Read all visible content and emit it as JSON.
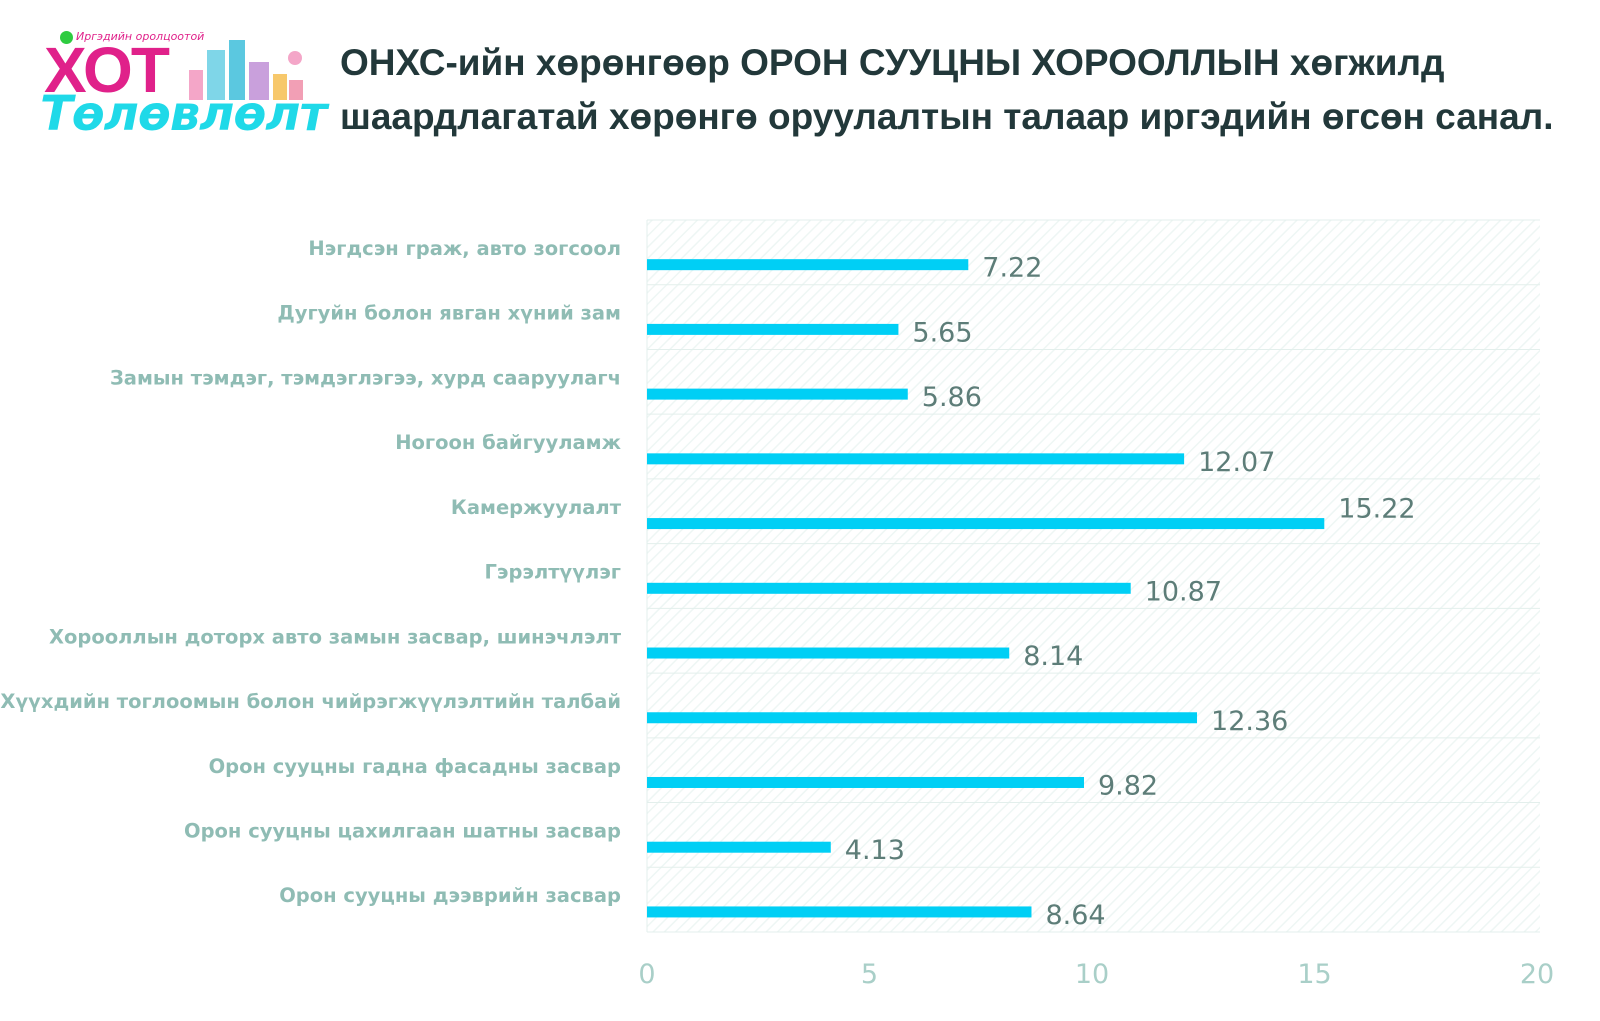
{
  "logo": {
    "tagline": "Иргэдийн оролцоотой",
    "word1": "ХОТ",
    "word2": "Төлөвлөлт"
  },
  "title": {
    "line1": "ОНХС-ийн хөрөнгөөр ОРОН СУУЦНЫ ХОРООЛЛЫН хөгжилд",
    "line2": "шаардлагатай хөрөнгө оруулалтын талаар иргэдийн өгсөн санал."
  },
  "chart_data": {
    "type": "bar",
    "orientation": "horizontal",
    "title": "ОНХС-ийн хөрөнгөөр ОРОН СУУЦНЫ ХОРООЛЛЫН хөгжилд шаардлагатай хөрөнгө оруулалтын талаар иргэдийн өгсөн санал.",
    "categories": [
      "Нэгдсэн граж, авто зогсоол",
      "Дугуйн болон явган хүний зам",
      "Замын тэмдэг, тэмдэглэгээ, хурд сааруулагч",
      "Ногоон байгууламж",
      "Камержуулалт",
      "Гэрэлтүүлэг",
      "Хорооллын доторх авто замын засвар, шинэчлэлт",
      "Хүүхдийн тоглоомын болон чийрэгжүүлэлтийн талбай",
      "Орон сууцны гадна фасадны засвар",
      "Орон сууцны цахилгаан шатны засвар",
      "Орон сууцны дээврийн засвар"
    ],
    "values": [
      7.22,
      5.65,
      5.86,
      12.07,
      15.22,
      10.87,
      8.14,
      12.36,
      9.82,
      4.13,
      8.64
    ],
    "value_labels": [
      "7.22",
      "5.65",
      "5.86",
      "12.07",
      "15.22",
      "10.87",
      "8.14",
      "12.36",
      "9.82",
      "4.13",
      "8.64"
    ],
    "xlim": [
      0,
      20
    ],
    "xticks": [
      0,
      5,
      10,
      15,
      20
    ],
    "xtick_labels": [
      "0",
      "5",
      "10",
      "15",
      "20"
    ],
    "xlabel": "",
    "ylabel": "",
    "grid": true,
    "legend": "none",
    "bar_color": "#00cff5",
    "label_color": "#8fbcb4",
    "value_label_color": "#5d7d78",
    "tick_color": "#a9cfc8"
  }
}
